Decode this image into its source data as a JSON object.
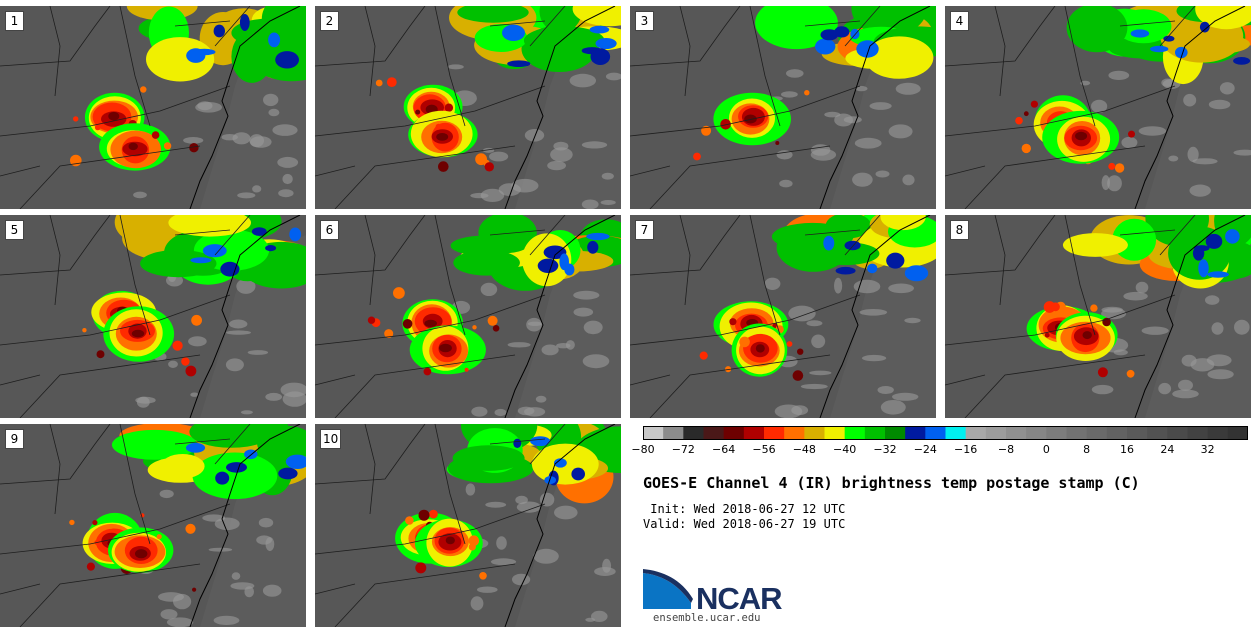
{
  "panels": [
    {
      "label": "1"
    },
    {
      "label": "2"
    },
    {
      "label": "3"
    },
    {
      "label": "4"
    },
    {
      "label": "5"
    },
    {
      "label": "6"
    },
    {
      "label": "7"
    },
    {
      "label": "8"
    },
    {
      "label": "9"
    },
    {
      "label": "10"
    }
  ],
  "colorbar": {
    "colors": [
      "#c8c8c8",
      "#8c8c8c",
      "#2a2a2a",
      "#4a1818",
      "#6e0000",
      "#b00000",
      "#ff2a00",
      "#ff7000",
      "#d8b000",
      "#f0f000",
      "#00ff00",
      "#00c000",
      "#008a00",
      "#001aa0",
      "#0060f0",
      "#00f0f0",
      "#a8a8a8",
      "#9c9c9c",
      "#909090",
      "#868686",
      "#7c7c7c",
      "#727272",
      "#6a6a6a",
      "#626262",
      "#5a5a5a",
      "#525252",
      "#4a4a4a",
      "#424242",
      "#3a3a3a",
      "#333333"
    ],
    "tick_labels": [
      "−80",
      "−72",
      "−64",
      "−56",
      "−48",
      "−40",
      "−32",
      "−24",
      "−16",
      "−8",
      "0",
      "8",
      "16",
      "24",
      "32"
    ]
  },
  "title": "GOES-E Channel 4 (IR) brightness temp postage stamp (C)",
  "init_line": " Init: Wed 2018-06-27 12 UTC",
  "valid_line": "Valid: Wed 2018-06-27 19 UTC",
  "logo": {
    "name": "NCAR",
    "url": "ensemble.ucar.edu",
    "blue": "#0a74c4",
    "dark": "#1a3060"
  }
}
